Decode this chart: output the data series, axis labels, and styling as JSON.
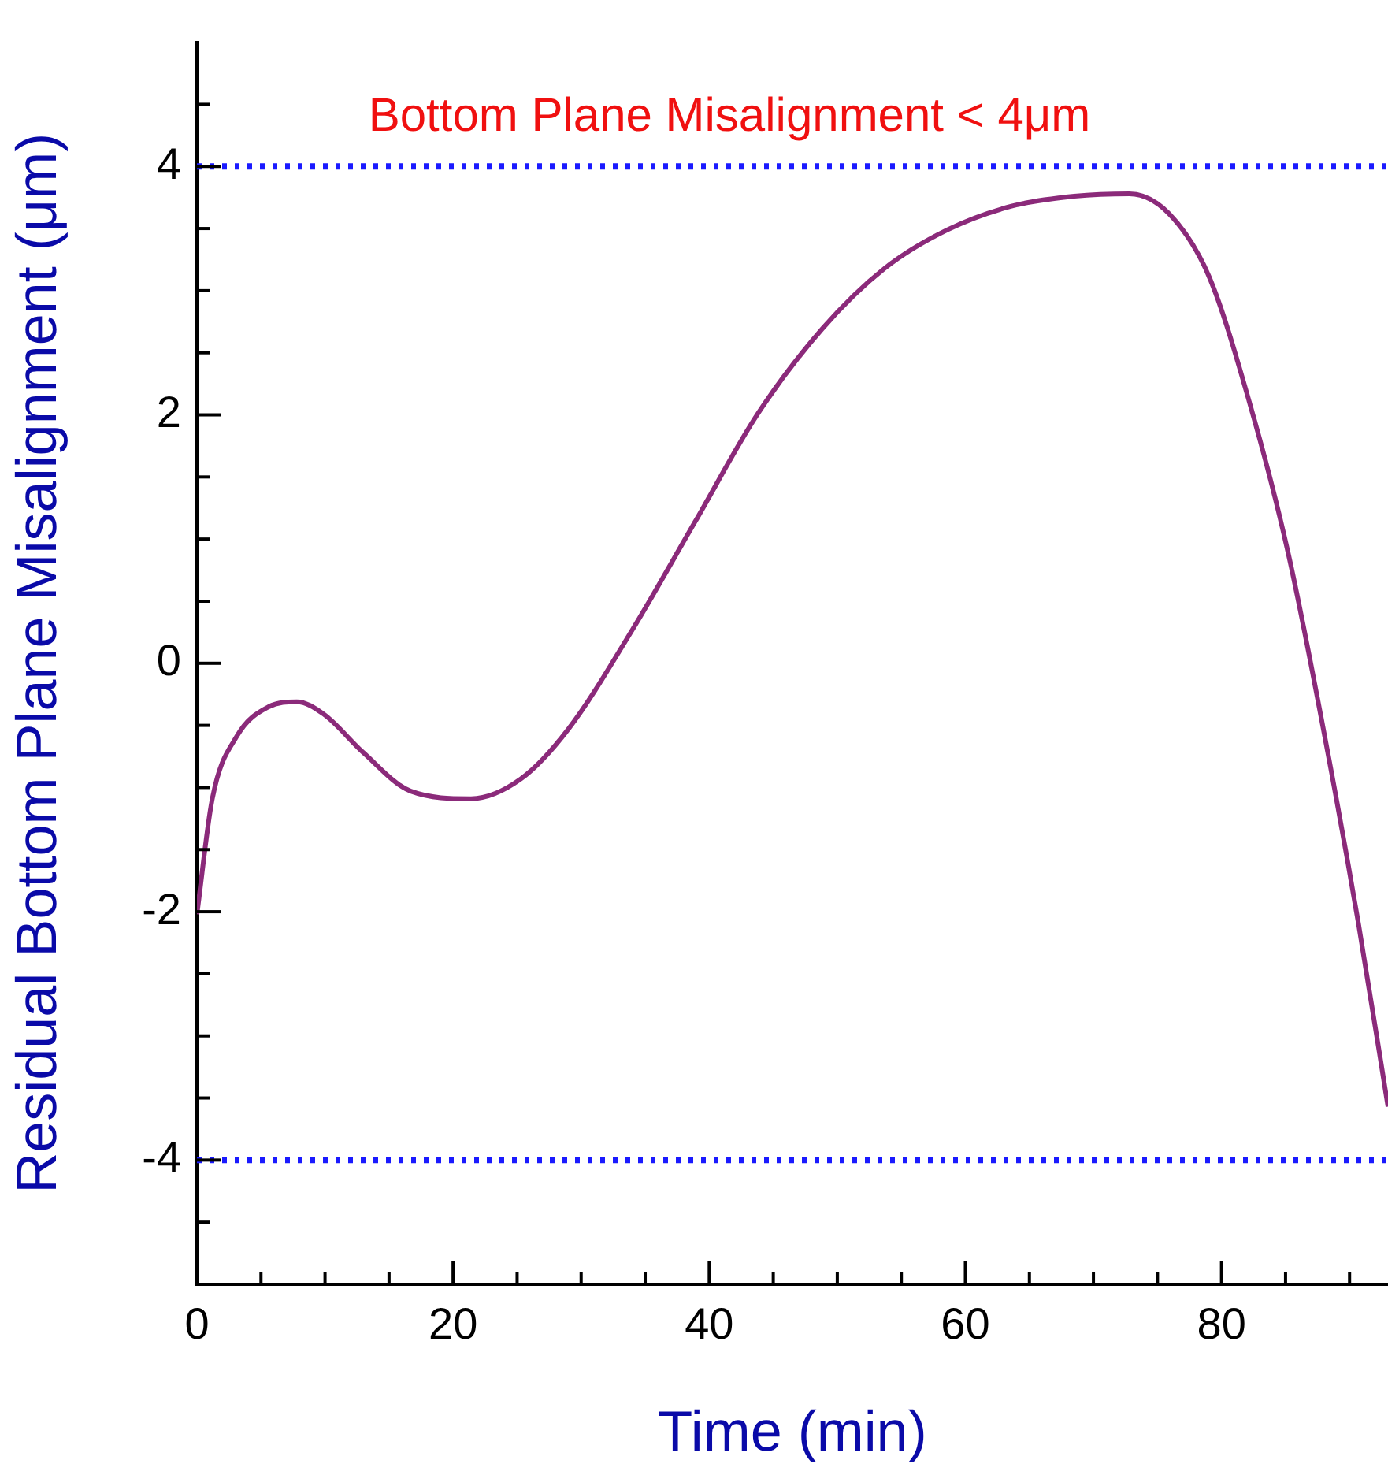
{
  "chart_data": {
    "type": "line",
    "xlabel": "Time (min)",
    "ylabel": "Residual Bottom Plane Misalignment (μm)",
    "xlim": [
      0,
      93
    ],
    "ylim": [
      -5,
      5
    ],
    "xticks": [
      0,
      {
        "value": 5,
        "label": null
      },
      {
        "value": 10,
        "label": null
      },
      {
        "value": 15,
        "label": null
      },
      20,
      {
        "value": 25,
        "label": null
      },
      {
        "value": 30,
        "label": null
      },
      {
        "value": 35,
        "label": null
      },
      40,
      {
        "value": 45,
        "label": null
      },
      {
        "value": 50,
        "label": null
      },
      {
        "value": 55,
        "label": null
      },
      60,
      {
        "value": 65,
        "label": null
      },
      {
        "value": 70,
        "label": null
      },
      {
        "value": 75,
        "label": null
      },
      80,
      {
        "value": 85,
        "label": null
      },
      {
        "value": 90,
        "label": null
      }
    ],
    "yticks": [
      {
        "value": -4.5,
        "label": null
      },
      -4,
      {
        "value": -3.5,
        "label": null
      },
      {
        "value": -3,
        "label": null
      },
      {
        "value": -2.5,
        "label": null
      },
      -2,
      {
        "value": -1.5,
        "label": null
      },
      {
        "value": -1,
        "label": null
      },
      {
        "value": -0.5,
        "label": null
      },
      0,
      {
        "value": 0.5,
        "label": null
      },
      {
        "value": 1,
        "label": null
      },
      {
        "value": 1.5,
        "label": null
      },
      2,
      {
        "value": 2.5,
        "label": null
      },
      {
        "value": 3,
        "label": null
      },
      {
        "value": 3.5,
        "label": null
      },
      4,
      {
        "value": 4.5,
        "label": null
      }
    ],
    "series": [
      {
        "color": "#8b2a7a",
        "x": [
          0,
          1.2,
          3.1,
          5.6,
          7.8,
          9.9,
          13,
          16.7,
          21.4,
          25.3,
          29,
          34,
          38.9,
          43.8,
          48.8,
          53.7,
          58.6,
          63.6,
          68.5,
          72.8,
          75.9,
          79,
          82.1,
          85.2,
          88.3,
          90.7,
          93
        ],
        "values": [
          -2.02,
          -1.09,
          -0.59,
          -0.35,
          -0.31,
          -0.41,
          -0.72,
          -1.03,
          -1.09,
          -0.93,
          -0.53,
          0.27,
          1.14,
          2.01,
          2.69,
          3.18,
          3.49,
          3.68,
          3.76,
          3.78,
          3.62,
          3.12,
          2.13,
          0.89,
          -0.72,
          -2.1,
          -3.57
        ]
      }
    ],
    "ref_lines": [
      {
        "axis": "y",
        "value": 4,
        "color": "#1a1aff",
        "line_style": "dotted"
      },
      {
        "axis": "y",
        "value": -4,
        "color": "#1a1aff",
        "line_style": "dotted"
      }
    ],
    "annotations": [
      "Bottom Plane Misalignment < 4μm"
    ],
    "grid": false,
    "legend": false,
    "marker": "none",
    "line_style": "solid"
  }
}
